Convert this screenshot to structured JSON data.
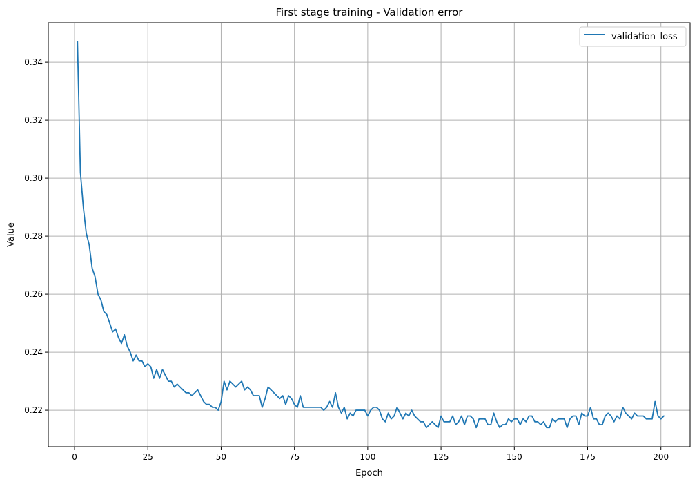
{
  "chart_data": {
    "type": "line",
    "title": "First stage training - Validation error",
    "xlabel": "Epoch",
    "ylabel": "Value",
    "xlim": [
      -8.95,
      209.95
    ],
    "ylim": [
      0.2074,
      0.3536
    ],
    "x_ticks": [
      0,
      25,
      50,
      75,
      100,
      125,
      150,
      175,
      200
    ],
    "y_ticks": [
      0.22,
      0.24,
      0.26,
      0.28,
      0.3,
      0.32,
      0.34
    ],
    "grid": true,
    "legend_position": "top-right",
    "series": [
      {
        "name": "validation_loss",
        "color": "#1f77b4",
        "x_start": 1,
        "values": [
          0.347,
          0.302,
          0.29,
          0.281,
          0.277,
          0.269,
          0.266,
          0.26,
          0.258,
          0.254,
          0.253,
          0.25,
          0.247,
          0.248,
          0.245,
          0.243,
          0.246,
          0.242,
          0.24,
          0.237,
          0.239,
          0.237,
          0.237,
          0.235,
          0.236,
          0.235,
          0.231,
          0.234,
          0.231,
          0.234,
          0.232,
          0.23,
          0.23,
          0.228,
          0.229,
          0.228,
          0.227,
          0.226,
          0.226,
          0.225,
          0.226,
          0.227,
          0.225,
          0.223,
          0.222,
          0.222,
          0.221,
          0.221,
          0.22,
          0.223,
          0.23,
          0.227,
          0.23,
          0.229,
          0.228,
          0.229,
          0.23,
          0.227,
          0.228,
          0.227,
          0.225,
          0.225,
          0.225,
          0.221,
          0.224,
          0.228,
          0.227,
          0.226,
          0.225,
          0.224,
          0.225,
          0.222,
          0.225,
          0.224,
          0.222,
          0.221,
          0.225,
          0.221,
          0.221,
          0.221,
          0.221,
          0.221,
          0.221,
          0.221,
          0.22,
          0.221,
          0.223,
          0.221,
          0.226,
          0.221,
          0.219,
          0.221,
          0.217,
          0.219,
          0.218,
          0.22,
          0.22,
          0.22,
          0.22,
          0.218,
          0.22,
          0.221,
          0.221,
          0.22,
          0.217,
          0.216,
          0.219,
          0.217,
          0.218,
          0.221,
          0.219,
          0.217,
          0.219,
          0.218,
          0.22,
          0.218,
          0.217,
          0.216,
          0.216,
          0.214,
          0.215,
          0.216,
          0.215,
          0.214,
          0.218,
          0.216,
          0.216,
          0.216,
          0.218,
          0.215,
          0.216,
          0.218,
          0.215,
          0.218,
          0.218,
          0.217,
          0.214,
          0.217,
          0.217,
          0.217,
          0.215,
          0.215,
          0.219,
          0.216,
          0.214,
          0.215,
          0.215,
          0.217,
          0.216,
          0.217,
          0.217,
          0.215,
          0.217,
          0.216,
          0.218,
          0.218,
          0.216,
          0.216,
          0.215,
          0.216,
          0.214,
          0.214,
          0.217,
          0.216,
          0.217,
          0.217,
          0.217,
          0.214,
          0.217,
          0.218,
          0.218,
          0.215,
          0.219,
          0.218,
          0.218,
          0.221,
          0.217,
          0.217,
          0.215,
          0.215,
          0.218,
          0.219,
          0.218,
          0.216,
          0.218,
          0.217,
          0.221,
          0.219,
          0.218,
          0.217,
          0.219,
          0.218,
          0.218,
          0.218,
          0.217,
          0.217,
          0.217,
          0.223,
          0.218,
          0.217,
          0.218
        ]
      }
    ]
  }
}
